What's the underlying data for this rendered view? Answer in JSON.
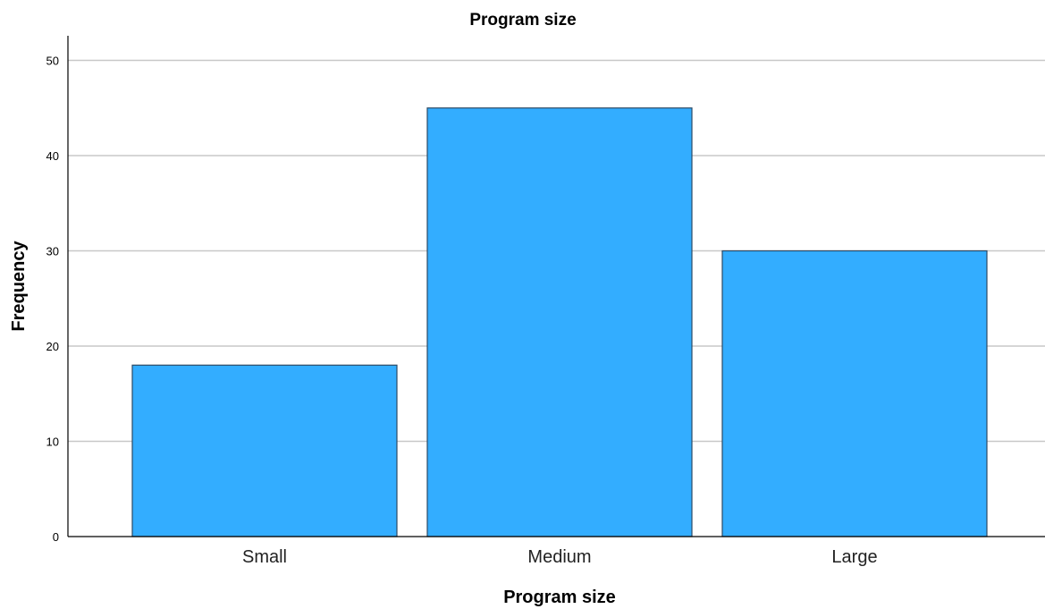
{
  "chart_data": {
    "type": "bar",
    "title": "Program size",
    "xlabel": "Program size",
    "ylabel": "Frequency",
    "categories": [
      "Small",
      "Medium",
      "Large"
    ],
    "values": [
      18,
      45,
      30
    ],
    "ylim": [
      0,
      52.5
    ],
    "yticks": [
      0,
      10,
      20,
      30,
      40,
      50
    ],
    "grid": "horizontal",
    "legend": "none",
    "bar_color": "#33adff",
    "bar_edge_color": "#2b4a66",
    "grid_color": "#c8c8c8"
  }
}
